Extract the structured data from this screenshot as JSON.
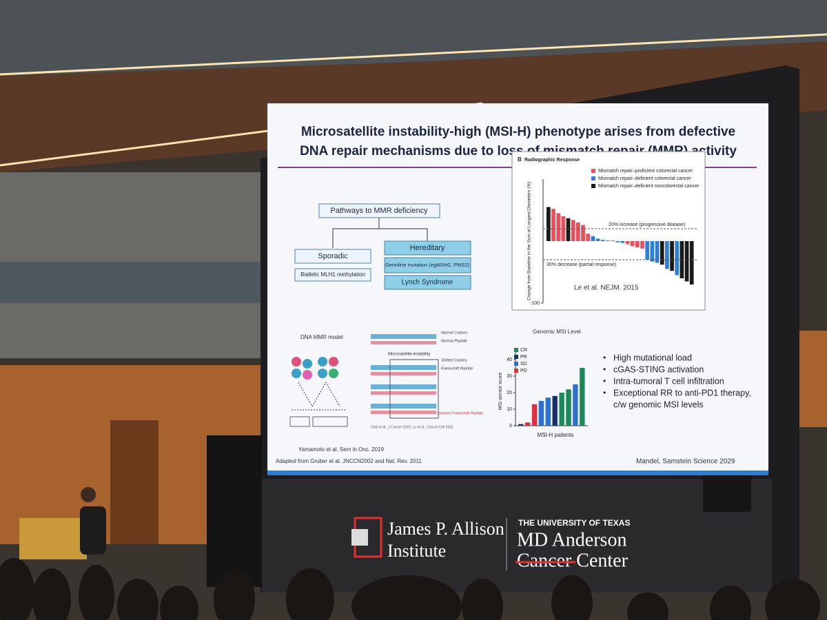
{
  "slide": {
    "title_lines": [
      "Microsatellite instability-high (MSI-H) phenotype arises from defective",
      "DNA repair mechanisms due to loss of mismatch repair (MMR) activity"
    ],
    "pathways": {
      "title": "Pathways to MMR deficiency",
      "sporadic": "Sporadic",
      "sporadic_cause": "Biallelic MLH1 methylation",
      "hereditary": "Hereditary",
      "germline": "Germline mutation (egMSH2, PMS2)",
      "lynch": "Lynch Syndrome"
    },
    "dna_model": {
      "title": "DNA MMR model",
      "citation": "Yamamoto et al. Sem in Onc. 2019"
    },
    "adapted": "Adapted from Gruber et al. JNCCN2002 and Nat. Rev. 2011",
    "frameshift": {
      "labels": [
        "Normal Codons",
        "Normal Peptide",
        "Microsatellite instability",
        "Shifted Codons",
        "Frameshift Peptide",
        "Shared Frameshift Peptide"
      ],
      "citation": "Choi et al., J Cancer 2019; Lu et al., Cancer Cell 2021"
    },
    "waterfall": {
      "panel": "B",
      "title": "Radiographic Response",
      "y_label": "Change from Baseline in the Sum of Longest Diameters (%)",
      "legend": [
        {
          "name": "Mismatch repair–proficient colorectal cancer",
          "color": "#e8505b"
        },
        {
          "name": "Mismatch repair–deficient colorectal cancer",
          "color": "#2f7fd8"
        },
        {
          "name": "Mismatch repair–deficient noncolorectal cancer",
          "color": "#1a1a1a"
        }
      ],
      "annotations": [
        "20% increase (progressive disease)",
        "30% decrease (partial response)"
      ],
      "reference_lines": [
        20,
        -30
      ],
      "ylim": [
        -100,
        100
      ],
      "yticks": [
        -100
      ],
      "values": [
        55,
        52,
        45,
        40,
        37,
        34,
        30,
        26,
        12,
        8,
        4,
        2,
        1,
        1,
        -2,
        -3,
        -5,
        -8,
        -10,
        -12,
        -30,
        -33,
        -35,
        -38,
        -45,
        -48,
        -55,
        -60,
        -65,
        -70
      ],
      "groups": [
        2,
        0,
        0,
        0,
        2,
        0,
        0,
        0,
        0,
        1,
        1,
        1,
        1,
        1,
        1,
        1,
        0,
        0,
        0,
        0,
        1,
        1,
        1,
        2,
        1,
        2,
        1,
        2,
        2,
        2
      ],
      "citation": "Le et al. NEJM. 2015"
    },
    "msi": {
      "title": "Genomic MSI Level",
      "y_label": "MSI sensor score",
      "x_label": "MSI-H patients",
      "legend": [
        {
          "name": "CR",
          "color": "#1b8a5a"
        },
        {
          "name": "PR",
          "color": "#1c2f6b"
        },
        {
          "name": "SD",
          "color": "#2f6fd0"
        },
        {
          "name": "PD",
          "color": "#e03040"
        }
      ],
      "ylim": [
        0,
        45
      ],
      "yticks": [
        0,
        10,
        20,
        30,
        40
      ],
      "values": [
        1,
        2,
        13,
        15,
        17,
        18,
        20,
        22,
        25,
        35
      ],
      "groups": [
        1,
        3,
        3,
        2,
        2,
        1,
        0,
        0,
        2,
        0
      ]
    },
    "bullets": [
      "High mutational load",
      "cGAS-STING activation",
      "Intra-tumoral T cell infiltration",
      "Exceptional RR to anti-PD1 therapy,",
      "c/w genomic MSI levels"
    ],
    "citation": "Mandel, Samstein Science 2029"
  },
  "logos": {
    "jpa": [
      "James P. Allison",
      "Institute"
    ],
    "ut": "THE UNIVERSITY OF TEXAS",
    "mda": [
      "MD Anderson",
      "Cancer Center"
    ]
  }
}
